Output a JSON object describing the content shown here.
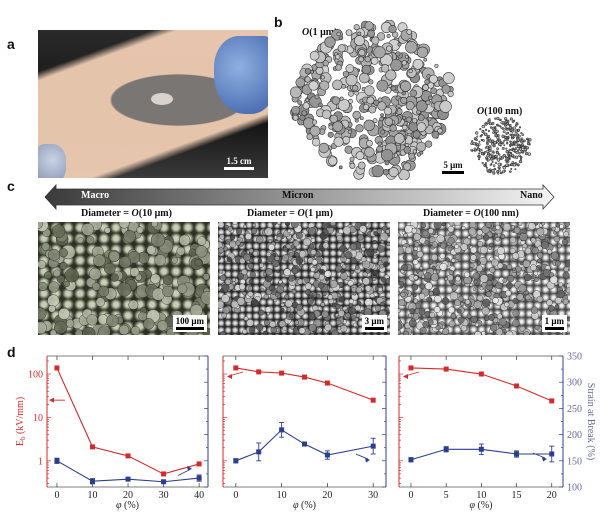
{
  "panels": {
    "a": {
      "letter": "a",
      "scale_bar": "1.5 cm"
    },
    "b": {
      "letter": "b",
      "large_label_o": "O",
      "large_label_rest": "(1 μm)",
      "small_label_o": "O",
      "small_label_rest": "(100 nm)",
      "scale_bar": "5 μm"
    },
    "c": {
      "letter": "c",
      "scale_labels": [
        "Macro",
        "Micron",
        "Nano"
      ],
      "diameters": [
        {
          "prefix": "Diameter = ",
          "o": "O",
          "rest": "(10 μm)"
        },
        {
          "prefix": "Diameter = ",
          "o": "O",
          "rest": "(1 μm)"
        },
        {
          "prefix": "Diameter = ",
          "o": "O",
          "rest": "(100 nm)"
        }
      ],
      "scale_bars": [
        "100 μm",
        "3 μm",
        "1 μm"
      ]
    },
    "d": {
      "letter": "d"
    }
  },
  "colors": {
    "eb_series": "#d42a2a",
    "strain_series": "#2b3f8f",
    "arrow_dark": "#3a3a3a",
    "arrow_light": "#f4f4f4"
  },
  "chart_data": [
    {
      "type": "line",
      "xlabel_symbol": "φ",
      "xlabel_unit": " (%)",
      "ylabel_left": {
        "main": "E",
        "sub": "b",
        "unit": " (kV/mm)"
      },
      "y_left_scale": "log",
      "xlim": [
        -2.8,
        42.5
      ],
      "xticks": [
        0,
        10,
        20,
        30,
        40
      ],
      "ylim_left": [
        0.25,
        260
      ],
      "yticks_left": [
        1,
        10,
        100
      ],
      "yticklabels_left": [
        "1",
        "10",
        "100"
      ],
      "ylim_right": [
        100,
        350
      ],
      "series": [
        {
          "axis": "left",
          "color": "#d42a2a",
          "x": [
            0,
            10,
            20,
            30,
            40
          ],
          "values": [
            138,
            2.1,
            1.3,
            0.5,
            0.85
          ],
          "arrow": "left"
        },
        {
          "axis": "right",
          "color": "#2b3f8f",
          "x": [
            0,
            10,
            20,
            30,
            40
          ],
          "values": [
            150,
            111,
            115,
            110,
            117
          ],
          "errors": [
            5,
            5,
            3,
            3,
            6
          ],
          "arrow": "right"
        }
      ]
    },
    {
      "type": "line",
      "xlabel_symbol": "φ",
      "xlabel_unit": " (%)",
      "y_left_scale": "log",
      "xlim": [
        -2.8,
        32.8
      ],
      "xticks": [
        0,
        10,
        20,
        30
      ],
      "ylim_left": [
        0.25,
        260
      ],
      "yticks_left": [
        1,
        10,
        100
      ],
      "ylim_right": [
        100,
        350
      ],
      "series": [
        {
          "axis": "left",
          "color": "#d42a2a",
          "x": [
            0,
            5,
            10,
            15,
            20,
            30
          ],
          "values": [
            138,
            112,
            105,
            85,
            62,
            25
          ],
          "arrow": "left"
        },
        {
          "axis": "right",
          "color": "#2b3f8f",
          "x": [
            0,
            5,
            10,
            15,
            20,
            30
          ],
          "values": [
            150,
            167,
            209,
            182,
            161,
            178
          ],
          "errors": [
            4,
            17,
            14,
            2,
            8,
            15
          ],
          "arrow": "right"
        }
      ]
    },
    {
      "type": "line",
      "xlabel_symbol": "φ",
      "xlabel_unit": " (%)",
      "ylabel_right": "Strain at Break (%)",
      "y_left_scale": "log",
      "xlim": [
        -1.7,
        21.6
      ],
      "xticks": [
        0,
        5,
        10,
        15,
        20
      ],
      "ylim_left": [
        0.25,
        260
      ],
      "yticks_left": [
        1,
        10,
        100
      ],
      "ylim_right": [
        100,
        350
      ],
      "yticks_right": [
        100,
        150,
        200,
        250,
        300,
        350
      ],
      "yticklabels_right": [
        "100",
        "150",
        "200",
        "250",
        "300",
        "350"
      ],
      "series": [
        {
          "axis": "left",
          "color": "#d42a2a",
          "x": [
            0,
            5,
            10,
            15,
            20
          ],
          "values": [
            138,
            130,
            100,
            53,
            24
          ],
          "arrow": "left"
        },
        {
          "axis": "right",
          "color": "#2b3f8f",
          "x": [
            0,
            5,
            10,
            15,
            20
          ],
          "values": [
            152,
            172,
            172,
            163,
            163
          ],
          "errors": [
            4,
            5,
            10,
            6,
            15
          ],
          "arrow": "right"
        }
      ]
    }
  ]
}
